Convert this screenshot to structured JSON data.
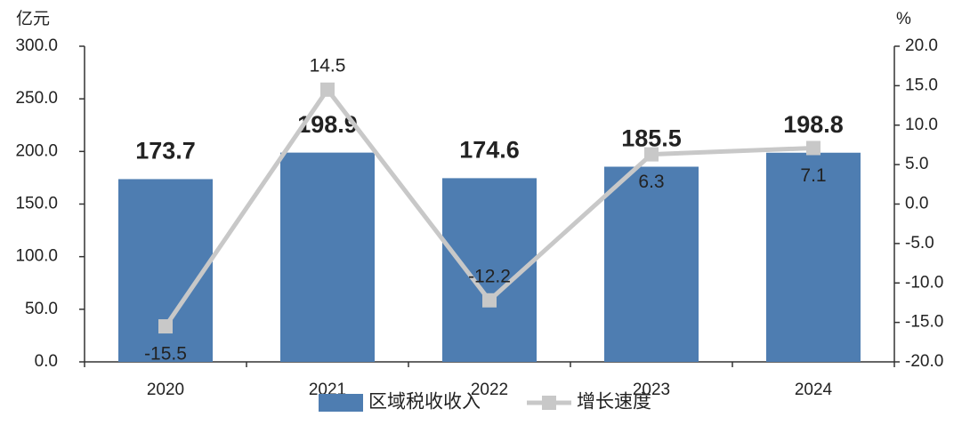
{
  "chart_data": {
    "type": "bar-line",
    "y_label": "亿元",
    "y2_label": "%",
    "categories": [
      "2020",
      "2021",
      "2022",
      "2023",
      "2024"
    ],
    "series": [
      {
        "name": "区域税收收入",
        "type": "bar",
        "color": "#4e7db1",
        "values": [
          173.7,
          198.9,
          174.6,
          185.5,
          198.8
        ]
      },
      {
        "name": "增长速度",
        "type": "line",
        "axis": "y2",
        "color": "#c8c8c8",
        "values": [
          -15.5,
          14.5,
          -12.2,
          6.3,
          7.1
        ]
      }
    ],
    "ylim": [
      0,
      300
    ],
    "yticks": [
      {
        "value": 0,
        "label": "0.0"
      },
      {
        "value": 50,
        "label": "50.0"
      },
      {
        "value": 100,
        "label": "100.0"
      },
      {
        "value": 150,
        "label": "150.0"
      },
      {
        "value": 200,
        "label": "200.0"
      },
      {
        "value": 250,
        "label": "250.0"
      },
      {
        "value": 300,
        "label": "300.0"
      }
    ],
    "y2lim": [
      -20,
      20
    ],
    "y2ticks": [
      {
        "value": -20,
        "label": "-20.0"
      },
      {
        "value": -15,
        "label": "-15.0"
      },
      {
        "value": -10,
        "label": "-10.0"
      },
      {
        "value": -5,
        "label": "-5.0"
      },
      {
        "value": 0,
        "label": "0.0"
      },
      {
        "value": 5,
        "label": "5.0"
      },
      {
        "value": 10,
        "label": "10.0"
      },
      {
        "value": 15,
        "label": "15.0"
      },
      {
        "value": 20,
        "label": "20.0"
      }
    ],
    "grid": false,
    "legend": "bottom"
  }
}
